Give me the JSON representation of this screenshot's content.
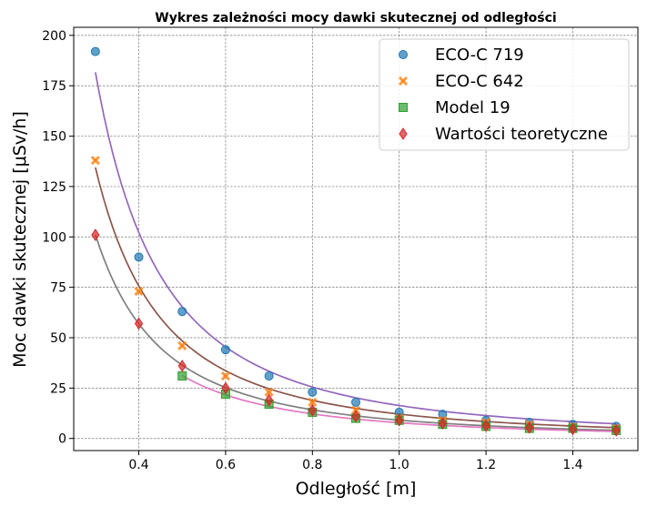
{
  "chart_data": {
    "type": "scatter",
    "title": "Wykres zależności mocy dawki skutecznej od odległości",
    "xlabel": "Odległość [m]",
    "ylabel": "Moc dawki skutecznej [μSv/h]",
    "xlim": [
      0.25,
      1.55
    ],
    "ylim": [
      -6,
      204
    ],
    "xticks": [
      "0.4",
      "0.6",
      "0.8",
      "1.0",
      "1.2",
      "1.4"
    ],
    "xtick_values": [
      0.4,
      0.6,
      0.8,
      1.0,
      1.2,
      1.4
    ],
    "yticks": [
      "0",
      "25",
      "50",
      "75",
      "100",
      "125",
      "150",
      "175",
      "200"
    ],
    "ytick_values": [
      0,
      25,
      50,
      75,
      100,
      125,
      150,
      175,
      200
    ],
    "grid": true,
    "legend_position": "top-right",
    "series": [
      {
        "name": "ECO-C 719",
        "marker": "circle",
        "color": "#1f77b4",
        "x": [
          0.3,
          0.4,
          0.5,
          0.6,
          0.7,
          0.8,
          0.9,
          1.0,
          1.1,
          1.2,
          1.3,
          1.4,
          1.5
        ],
        "y": [
          192,
          90,
          63,
          44,
          31,
          23,
          18,
          13,
          12,
          9,
          8,
          7,
          6
        ]
      },
      {
        "name": "ECO-C 642",
        "marker": "x",
        "color": "#ff7f0e",
        "x": [
          0.3,
          0.4,
          0.5,
          0.6,
          0.7,
          0.8,
          0.9,
          1.0,
          1.1,
          1.2,
          1.3,
          1.4,
          1.5
        ],
        "y": [
          138,
          73,
          46,
          31,
          23,
          18,
          14,
          10,
          9,
          8,
          7,
          6,
          5
        ]
      },
      {
        "name": "Model 19",
        "marker": "square",
        "color": "#2ca02c",
        "x": [
          0.5,
          0.6,
          0.7,
          0.8,
          0.9,
          1.0,
          1.1,
          1.2,
          1.3,
          1.4,
          1.5
        ],
        "y": [
          31,
          22,
          17,
          13,
          10,
          9,
          7,
          6,
          5,
          5,
          4
        ]
      },
      {
        "name": "Wartości teoretyczne",
        "marker": "diamond",
        "color": "#d62728",
        "x": [
          0.3,
          0.4,
          0.5,
          0.6,
          0.7,
          0.8,
          0.9,
          1.0,
          1.1,
          1.2,
          1.3,
          1.4,
          1.5
        ],
        "y": [
          101,
          57,
          36,
          25,
          19,
          14,
          11,
          9,
          7.5,
          6.3,
          5.4,
          4.6,
          4
        ]
      }
    ],
    "fit_curves": [
      {
        "color": "#9467bd",
        "coef": 16.35,
        "exponent": 2,
        "x_range": [
          0.3,
          1.5
        ]
      },
      {
        "color": "#8c564b",
        "coef": 12.1,
        "exponent": 2,
        "x_range": [
          0.3,
          1.5
        ]
      },
      {
        "color": "#7f7f7f",
        "coef": 9.1,
        "exponent": 2,
        "x_range": [
          0.3,
          1.5
        ]
      },
      {
        "color": "#e377c2",
        "coef": 7.8,
        "exponent": 2,
        "x_range": [
          0.5,
          1.5
        ]
      }
    ]
  }
}
